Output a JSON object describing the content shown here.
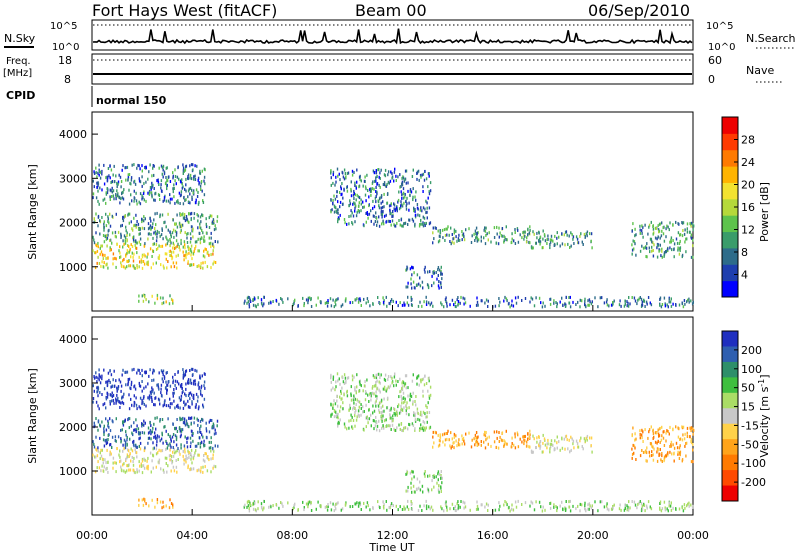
{
  "header": {
    "station": "Fort Hays West (fitACF)",
    "beam": "Beam 00",
    "date": "06/Sep/2010"
  },
  "top_panels": {
    "nsky_label": "N.Sky",
    "nsearch_label": "N.Search",
    "nsky_ticks": [
      "10^5",
      "10^0"
    ],
    "nsearch_ticks": [
      "10^5",
      "10^0"
    ],
    "freq_label": "Freq.",
    "freq_unit": "[MHz]",
    "freq_ticks": [
      "18",
      "8"
    ],
    "nave_label": "Nave",
    "nave_ticks": [
      "60",
      "0"
    ],
    "cpid_label": "CPID",
    "cpid_value": "normal 150"
  },
  "colors": {
    "power": [
      "#0000ff",
      "#1f3fae",
      "#2e6c8a",
      "#3a9c6a",
      "#5ec34c",
      "#b5d93a",
      "#f2e230",
      "#ffb400",
      "#ff7a00",
      "#ff3a00",
      "#ee0000"
    ],
    "velocity": [
      "#1f2fbf",
      "#2f5fb0",
      "#2e8f6a",
      "#3fbf3f",
      "#aadd66",
      "#c8c8c8",
      "#ffd24a",
      "#ffa41b",
      "#ff7a00",
      "#ff4a00",
      "#ee0000"
    ]
  },
  "chart_data": {
    "type": "heatmap",
    "x_range_hours": [
      0,
      24
    ],
    "x_ticks": [
      "00:00",
      "04:00",
      "08:00",
      "12:00",
      "16:00",
      "20:00",
      "00:00"
    ],
    "xlabel": "Time UT",
    "ylabel": "Slant Range [km]",
    "ylim": [
      0,
      4500
    ],
    "y_ticks": [
      1000,
      2000,
      3000,
      4000
    ],
    "power_colorbar": {
      "label": "Power [dB]",
      "ticks": [
        4,
        8,
        12,
        16,
        20,
        24,
        28
      ],
      "range": [
        0,
        32
      ]
    },
    "velocity_colorbar": {
      "label": "Velocity [m s^-1]",
      "ticks": [
        "200",
        "100",
        "50",
        "15",
        "-15",
        "-50",
        "-100",
        "-200"
      ]
    },
    "echo_regions": [
      {
        "t": [
          0,
          5.0
        ],
        "r": [
          950,
          1500
        ],
        "power": 18,
        "velocity": -15
      },
      {
        "t": [
          0,
          5.0
        ],
        "r": [
          1500,
          2200
        ],
        "power": 8,
        "velocity": 100
      },
      {
        "t": [
          0,
          4.5
        ],
        "r": [
          2400,
          3300
        ],
        "power": 6,
        "velocity": 200
      },
      {
        "t": [
          1.8,
          3.2
        ],
        "r": [
          150,
          350
        ],
        "power": 16,
        "velocity": -50
      },
      {
        "t": [
          9.5,
          13.5
        ],
        "r": [
          1900,
          3200
        ],
        "power": 6,
        "velocity": 15
      },
      {
        "t": [
          12.5,
          14.0
        ],
        "r": [
          500,
          1000
        ],
        "power": 6,
        "velocity": 15
      },
      {
        "t": [
          13.5,
          17.5
        ],
        "r": [
          1500,
          1900
        ],
        "power": 10,
        "velocity": -50
      },
      {
        "t": [
          17.5,
          20.0
        ],
        "r": [
          1400,
          1800
        ],
        "power": 8,
        "velocity": -15
      },
      {
        "t": [
          21.5,
          24.0
        ],
        "r": [
          1200,
          2000
        ],
        "power": 10,
        "velocity": -50
      },
      {
        "t": [
          6.0,
          24.0
        ],
        "r": [
          80,
          300
        ],
        "power": 6,
        "velocity": 15
      }
    ]
  }
}
